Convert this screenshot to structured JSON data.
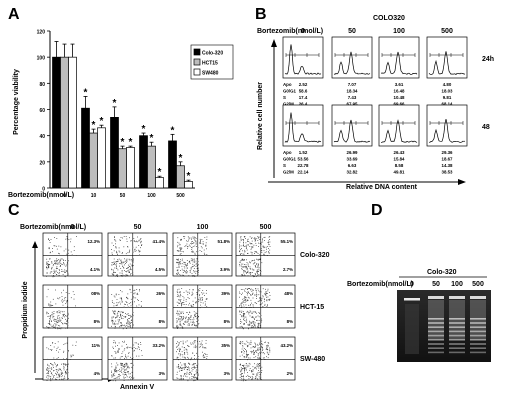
{
  "panel_labels": {
    "a": "A",
    "b": "B",
    "c": "C",
    "d": "D"
  },
  "chart_data": [
    {
      "type": "bar",
      "panel": "A",
      "ylabel": "Percentage viability",
      "xprefix": "Bortezomib(nmol/L)",
      "categories": [
        "0",
        "10",
        "50",
        "100",
        "500"
      ],
      "ylim": [
        0,
        120
      ],
      "yticks": [
        "0",
        "20",
        "40",
        "60",
        "80",
        "100",
        "120"
      ],
      "series": [
        {
          "name": "Colo-320",
          "fill": "#000000",
          "values": [
            100,
            61,
            54,
            40,
            36
          ],
          "errors": [
            12,
            9,
            8,
            2,
            5
          ],
          "stars": [
            "",
            "*",
            "*",
            "*",
            "*"
          ]
        },
        {
          "name": "HCT15",
          "fill": "#bdbdbd",
          "values": [
            100,
            42,
            30,
            32,
            17
          ],
          "errors": [
            10,
            3,
            2,
            3,
            3
          ],
          "stars": [
            "",
            "*",
            "*",
            "*",
            "*"
          ]
        },
        {
          "name": "SW480",
          "fill": "#ffffff",
          "values": [
            100,
            46,
            31,
            8,
            5
          ],
          "errors": [
            10,
            2,
            1,
            1,
            1
          ],
          "stars": [
            "",
            "*",
            "*",
            "*",
            "*"
          ]
        }
      ]
    },
    {
      "type": "table",
      "panel": "B",
      "title": "COLO320",
      "xprefix": "Bortezomib(nmol/L)",
      "doses": [
        "0",
        "50",
        "100",
        "500"
      ],
      "ylabel": "Relative cell number",
      "xlabel": "Relative DNA content",
      "rows": [
        {
          "time": "24h",
          "labels": [
            "Apo",
            "G0/G1",
            "S",
            "G2/M"
          ],
          "values": [
            [
              "2.52",
              "58.6",
              "17.4",
              "26.4"
            ],
            [
              "7.07",
              "18.34",
              "7.43",
              "67.95"
            ],
            [
              "3.61",
              "16.48",
              "10.48",
              "69.66"
            ],
            [
              "4.80",
              "18.03",
              "9.81",
              "68.14"
            ]
          ]
        },
        {
          "time": "48",
          "labels": [
            "Apo",
            "G0/G1",
            "S",
            "G2/M"
          ],
          "values": [
            [
              "1.52",
              "53.56",
              "22.78",
              "22.14"
            ],
            [
              "26.99",
              "33.69",
              "6.63",
              "32.82"
            ],
            [
              "26.43",
              "15.84",
              "8.58",
              "49.81"
            ],
            [
              "29.36",
              "18.67",
              "14.38",
              "38.53"
            ]
          ]
        }
      ]
    },
    {
      "type": "scatter",
      "panel": "C",
      "xprefix": "Bortezomib(nmol/L)",
      "doses": [
        "0",
        "50",
        "100",
        "500"
      ],
      "ylabel": "Propidium iodide",
      "xlabel": "Annexin V",
      "cell_lines": [
        {
          "name": "Colo-320",
          "upper": [
            "12.3%",
            "41.4%",
            "51.8%",
            "55.1%"
          ],
          "lower": [
            "4.1%",
            "4.5%",
            "3.9%",
            "2.7%"
          ]
        },
        {
          "name": "HCT-15",
          "upper": [
            "08%",
            "26%",
            "39%",
            "48%"
          ],
          "lower": [
            "8%",
            "8%",
            "8%",
            "8%"
          ]
        },
        {
          "name": "SW-480",
          "upper": [
            "11%",
            "33.2%",
            "35%",
            "43.2%"
          ],
          "lower": [
            "4%",
            "3%",
            "3%",
            "2%"
          ]
        }
      ]
    },
    {
      "type": "other",
      "panel": "D",
      "title": "Colo-320",
      "xprefix": "Bortezomib(nmol/L)",
      "doses": [
        "0",
        "50",
        "100",
        "500"
      ]
    }
  ]
}
